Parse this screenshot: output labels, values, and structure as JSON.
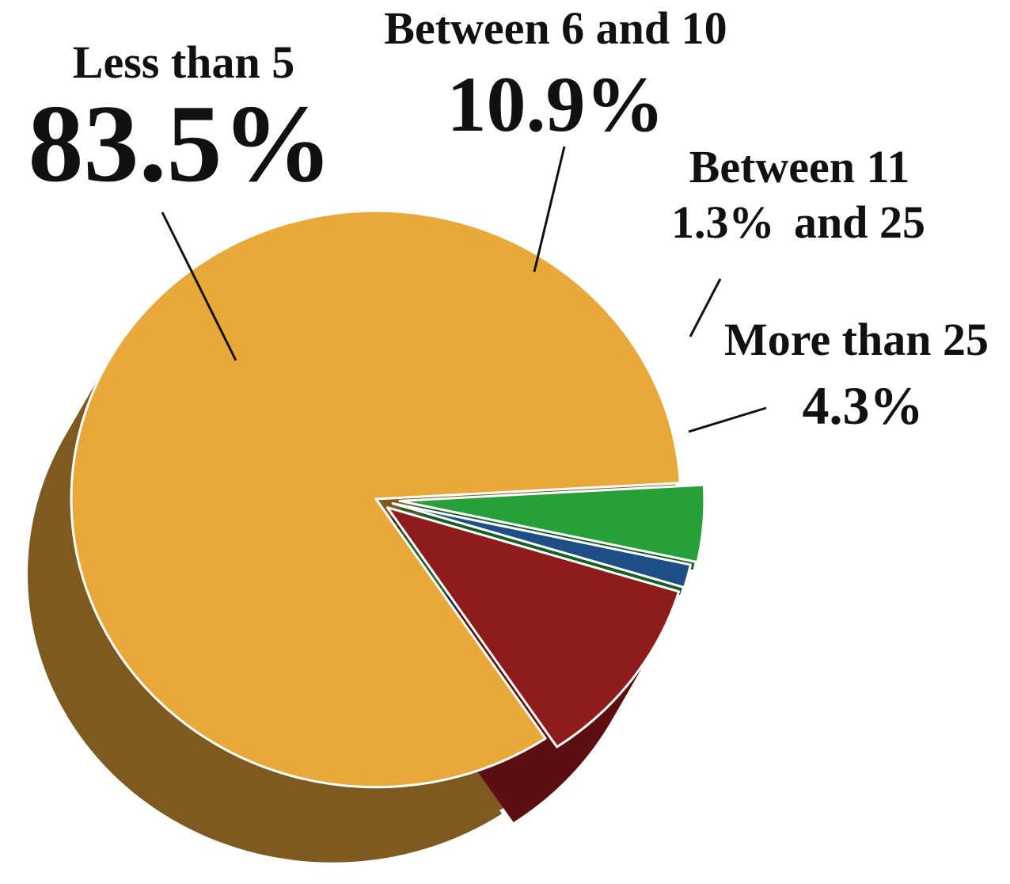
{
  "chart_data": {
    "type": "pie",
    "title": "",
    "three_d": true,
    "exploded": true,
    "slices": [
      {
        "label": "Less than 5",
        "value": 83.5,
        "display": "83.5%",
        "color": "#E8A93A",
        "side_color": "#7E5A20"
      },
      {
        "label": "Between 6 and 10",
        "value": 10.9,
        "display": "10.9%",
        "color": "#8E1C1C",
        "side_color": "#5C0E10"
      },
      {
        "label": "Between 11 and 25",
        "value": 1.3,
        "display": "1.3%",
        "color": "#1E4E86",
        "side_color": "#0E2C55"
      },
      {
        "label": "More than 25",
        "value": 4.3,
        "display": "4.3%",
        "color": "#27A03A",
        "side_color": "#165E22"
      }
    ]
  },
  "labels": {
    "less_than_5": {
      "name": "Less than 5",
      "value": "83.5%"
    },
    "between_6_10": {
      "name": "Between 6 and 10",
      "value": "10.9%"
    },
    "between_11_25": {
      "name_line1": "Between 11",
      "value": "1.3%",
      "name_line2": "and 25"
    },
    "more_than_25": {
      "name": "More than 25",
      "value": "4.3%"
    }
  }
}
